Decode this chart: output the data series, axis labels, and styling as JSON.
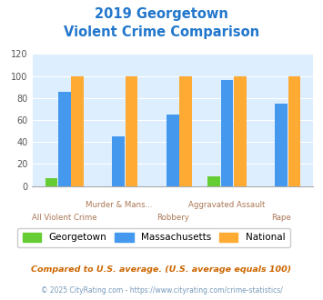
{
  "title_line1": "2019 Georgetown",
  "title_line2": "Violent Crime Comparison",
  "categories": [
    "All Violent Crime",
    "Murder & Mans...",
    "Robbery",
    "Aggravated Assault",
    "Rape"
  ],
  "top_labels": [
    "",
    "Murder & Mans...",
    "",
    "Aggravated Assault",
    ""
  ],
  "bot_labels": [
    "All Violent Crime",
    "",
    "Robbery",
    "",
    "Rape"
  ],
  "georgetown": [
    7,
    0,
    0,
    9,
    0
  ],
  "massachusetts": [
    86,
    45,
    65,
    96,
    75
  ],
  "national": [
    100,
    100,
    100,
    100,
    100
  ],
  "georgetown_color": "#66cc33",
  "massachusetts_color": "#4499ee",
  "national_color": "#ffaa33",
  "title_color": "#2277cc",
  "bg_color": "#ddeeff",
  "ylim": [
    0,
    120
  ],
  "yticks": [
    0,
    20,
    40,
    60,
    80,
    100,
    120
  ],
  "legend_labels": [
    "Georgetown",
    "Massachusetts",
    "National"
  ],
  "footnote1": "Compared to U.S. average. (U.S. average equals 100)",
  "footnote2": "© 2025 CityRating.com - https://www.cityrating.com/crime-statistics/",
  "footnote1_color": "#cc6600",
  "footnote2_color": "#7799bb"
}
